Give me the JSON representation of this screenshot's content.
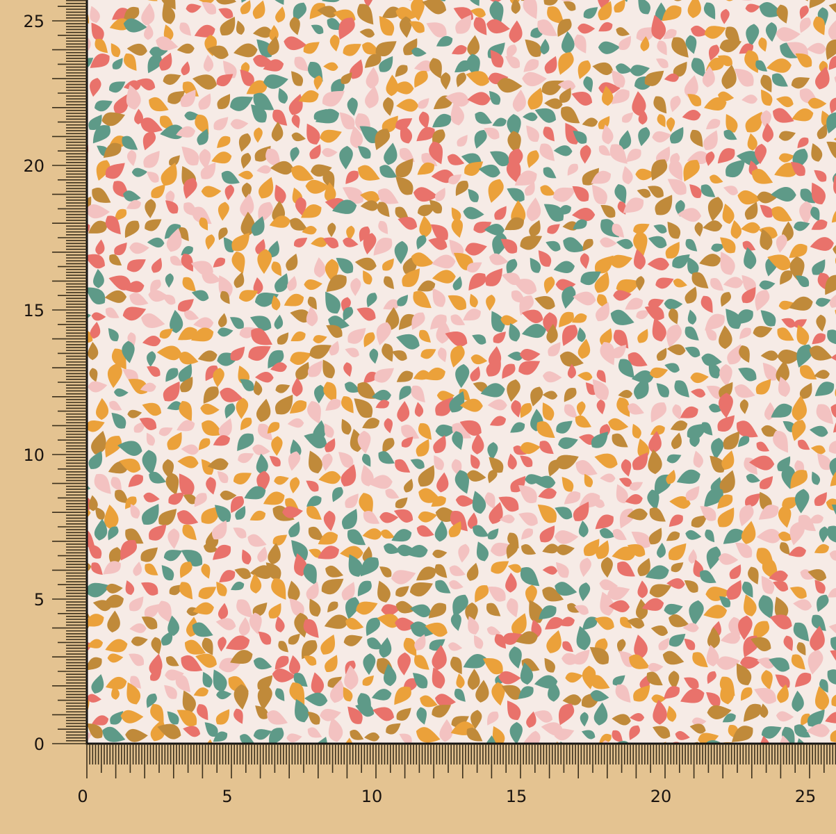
{
  "ruler": {
    "background": "#e4c391",
    "tick_color": "#3a2f1c",
    "unit_step": 1,
    "x_axis": {
      "range": [
        0,
        25.8
      ],
      "labels": [
        "0",
        "5",
        "10",
        "15",
        "20",
        "25"
      ]
    },
    "y_axis": {
      "range": [
        0,
        25.7
      ],
      "labels": [
        "0",
        "5",
        "10",
        "15",
        "20",
        "25"
      ]
    }
  },
  "fabric": {
    "pattern": "scattered teardrops",
    "background": "#f6ebe6",
    "palette": [
      "#5e9a88",
      "#eba13a",
      "#c08a3a",
      "#f3c2c1",
      "#e9726b"
    ]
  }
}
